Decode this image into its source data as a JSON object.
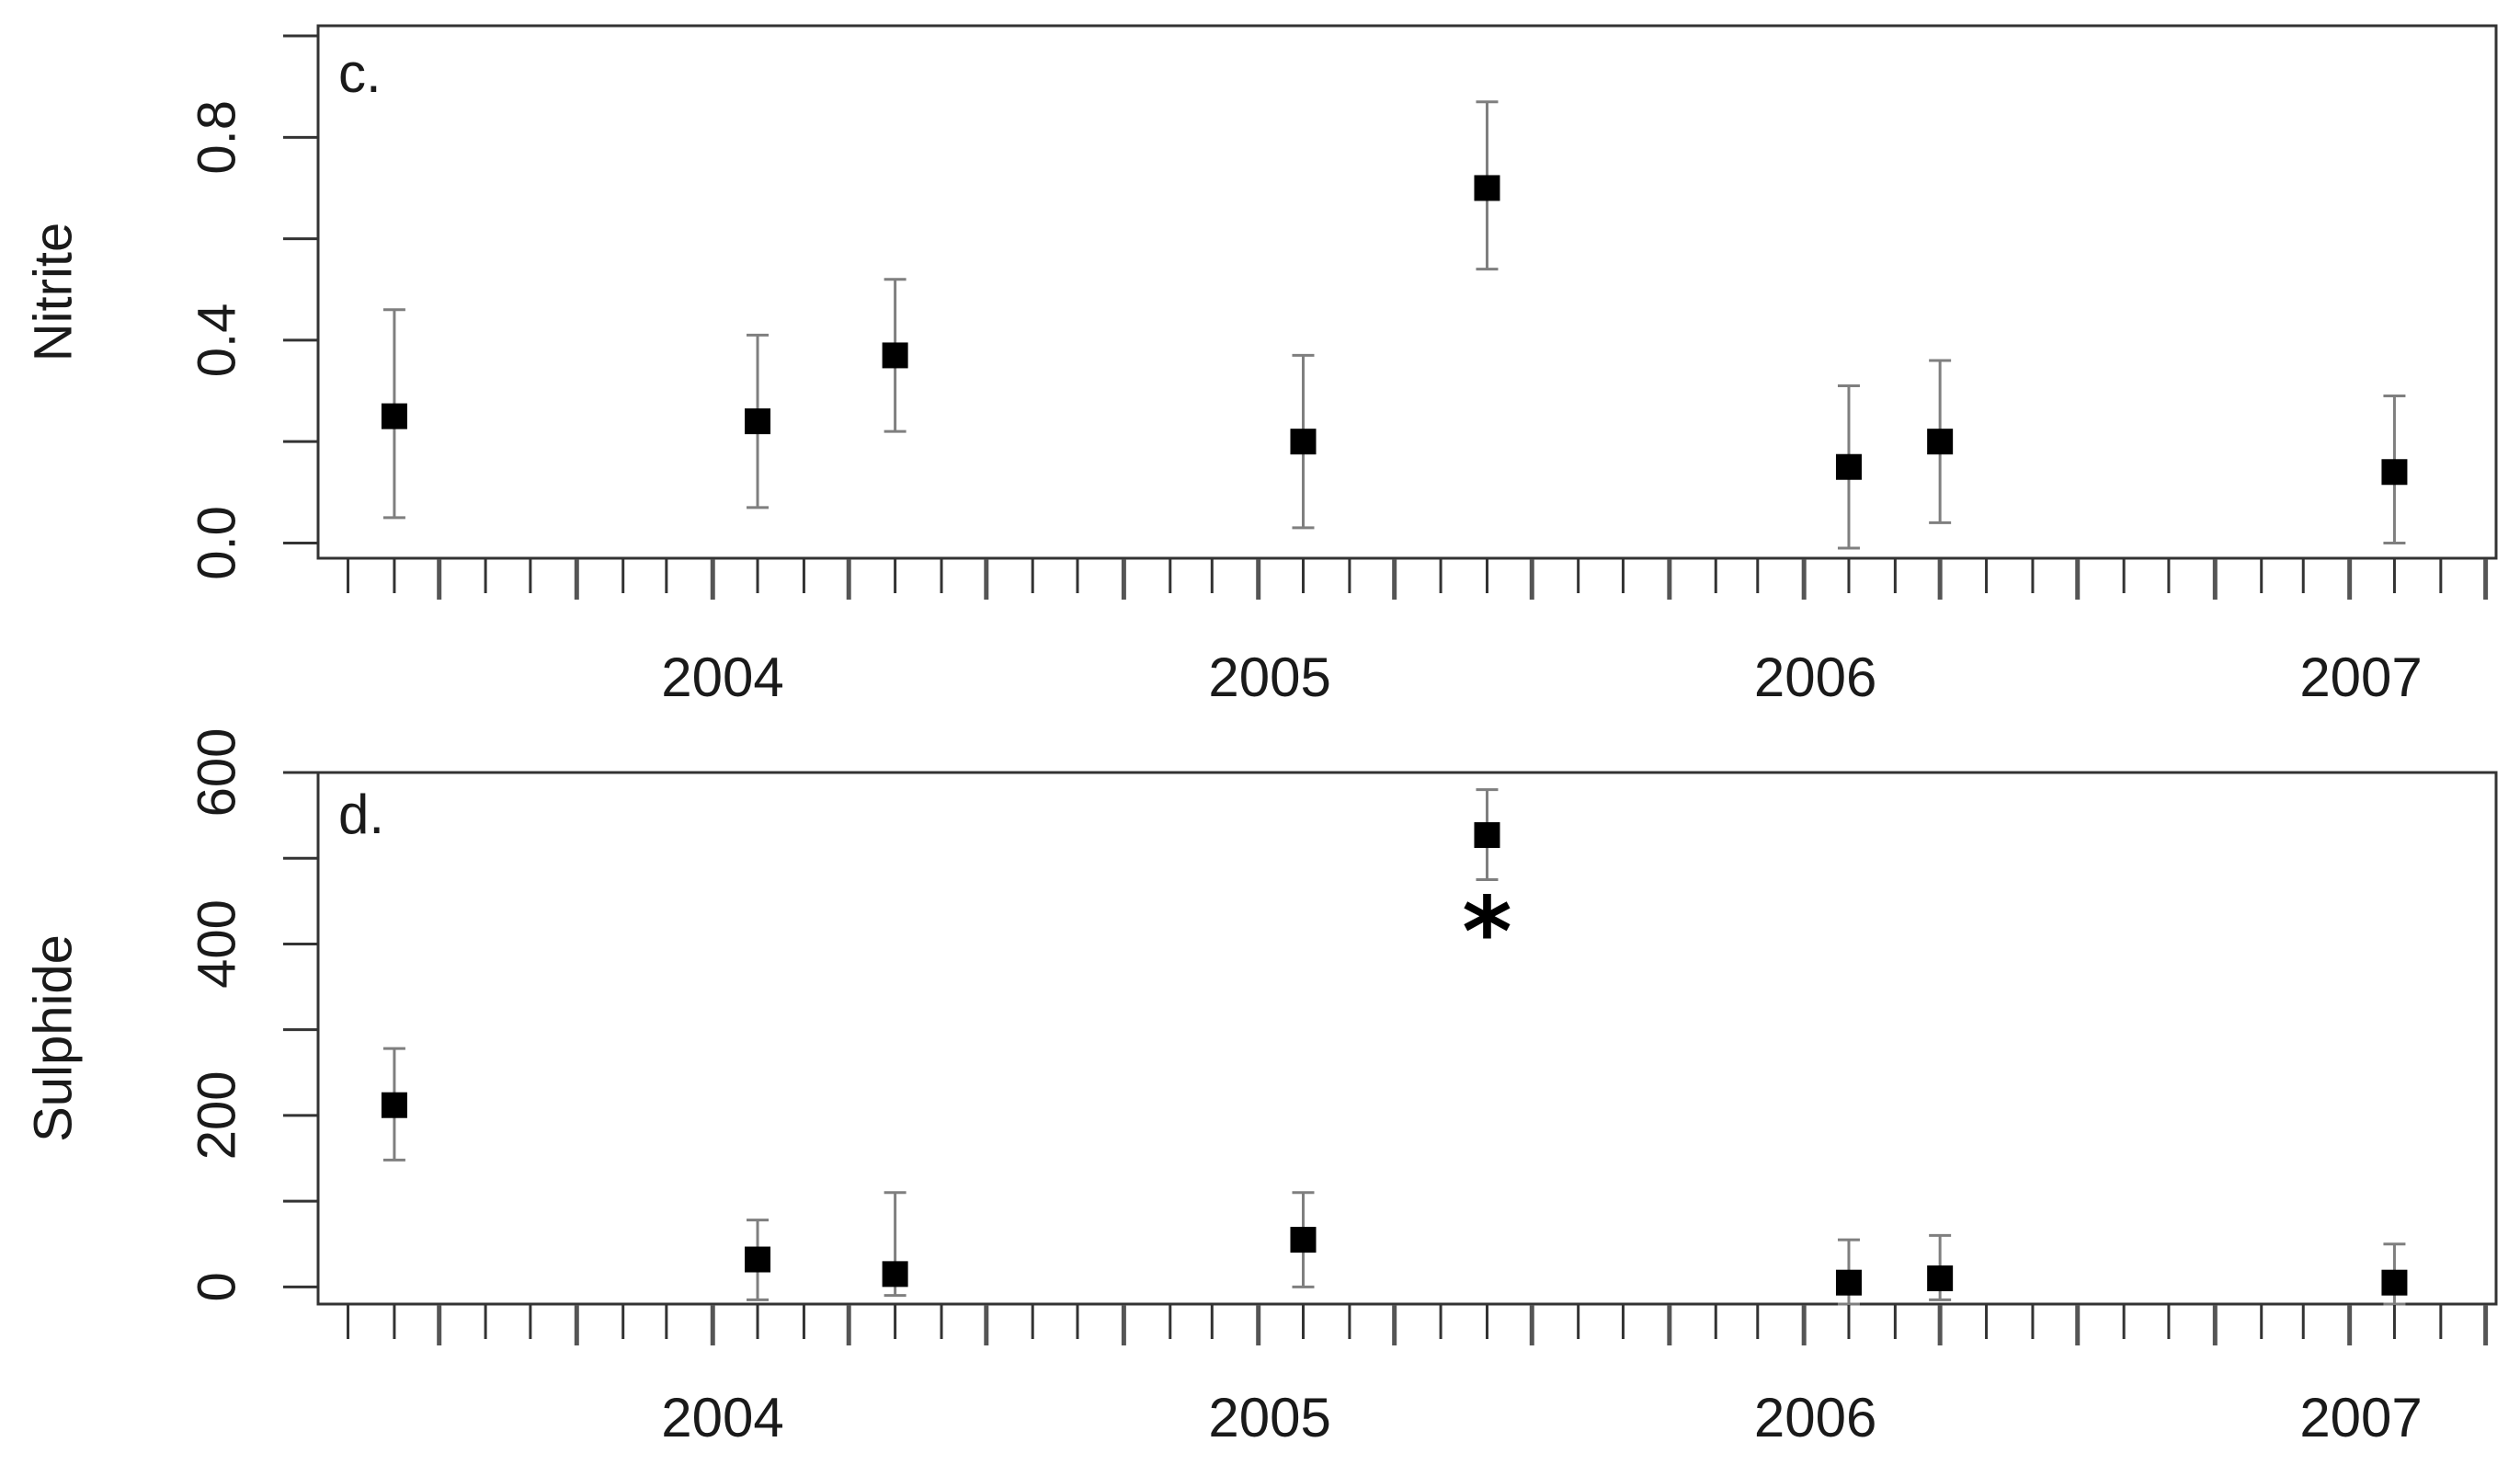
{
  "colors": {
    "frame": "#333333",
    "error_bar": "#7f7f7f",
    "point": "#000000",
    "tick": "#333333",
    "text": "#1a1a1a",
    "background": "#ffffff"
  },
  "chart_data": [
    {
      "type": "scatter",
      "panel": "c.",
      "ylabel": "Nitrite",
      "ylim": [
        -0.03,
        1.02
      ],
      "yticks": [
        0.0,
        0.2,
        0.4,
        0.6,
        0.8,
        1.0
      ],
      "ytick_labels": [
        "0.0",
        "0.4",
        "0.8"
      ],
      "ytick_label_values": [
        0.0,
        0.4,
        0.8
      ],
      "xlim": [
        "2003-07-12",
        "2007-07-08"
      ],
      "xtick_labels": [
        "2004",
        "2005",
        "2006",
        "2007"
      ],
      "xtick_dates": [
        "2004-01-01",
        "2005-01-01",
        "2006-01-01",
        "2007-01-01"
      ],
      "grid": false,
      "points": [
        {
          "x": "2003-09-01",
          "y": 0.25,
          "lo": 0.05,
          "hi": 0.46
        },
        {
          "x": "2004-05-01",
          "y": 0.24,
          "lo": 0.07,
          "hi": 0.41
        },
        {
          "x": "2004-08-01",
          "y": 0.37,
          "lo": 0.22,
          "hi": 0.52
        },
        {
          "x": "2005-05-01",
          "y": 0.2,
          "lo": 0.03,
          "hi": 0.37
        },
        {
          "x": "2005-09-01",
          "y": 0.7,
          "lo": 0.54,
          "hi": 0.87
        },
        {
          "x": "2006-05-01",
          "y": 0.15,
          "lo": -0.01,
          "hi": 0.31
        },
        {
          "x": "2006-07-01",
          "y": 0.2,
          "lo": 0.04,
          "hi": 0.36
        },
        {
          "x": "2007-05-01",
          "y": 0.14,
          "lo": 0.0,
          "hi": 0.29
        }
      ]
    },
    {
      "type": "scatter",
      "panel": "d.",
      "ylabel": "Sulphide",
      "ylim": [
        -20,
        600
      ],
      "yticks": [
        0,
        100,
        200,
        300,
        400,
        500,
        600
      ],
      "ytick_labels": [
        "0",
        "200",
        "400",
        "600"
      ],
      "ytick_label_values": [
        0,
        200,
        400,
        600
      ],
      "xlim": [
        "2003-07-12",
        "2007-07-08"
      ],
      "xtick_labels": [
        "2004",
        "2005",
        "2006",
        "2007"
      ],
      "xtick_dates": [
        "2004-01-01",
        "2005-01-01",
        "2006-01-01",
        "2007-01-01"
      ],
      "grid": false,
      "annotation": {
        "text": "*",
        "x": "2005-09-01",
        "y": 412
      },
      "points": [
        {
          "x": "2003-09-01",
          "y": 212,
          "lo": 148,
          "hi": 278
        },
        {
          "x": "2004-05-01",
          "y": 32,
          "lo": -15,
          "hi": 78
        },
        {
          "x": "2004-08-01",
          "y": 15,
          "lo": -10,
          "hi": 110
        },
        {
          "x": "2005-05-01",
          "y": 55,
          "lo": 0,
          "hi": 110
        },
        {
          "x": "2005-09-01",
          "y": 527,
          "lo": 475,
          "hi": 580
        },
        {
          "x": "2006-05-01",
          "y": 5,
          "lo": -20,
          "hi": 55
        },
        {
          "x": "2006-07-01",
          "y": 10,
          "lo": -15,
          "hi": 60
        },
        {
          "x": "2007-05-01",
          "y": 5,
          "lo": -20,
          "hi": 50
        }
      ]
    }
  ]
}
